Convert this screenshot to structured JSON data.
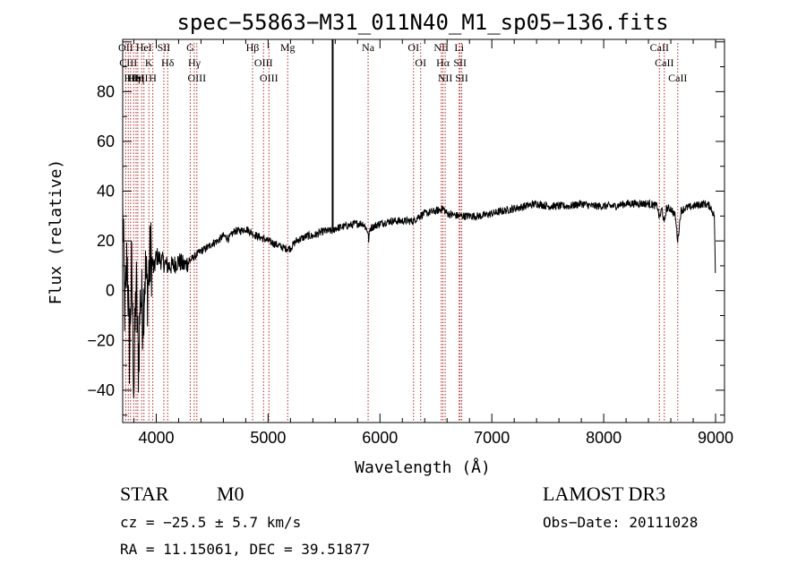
{
  "chart_data": {
    "type": "line",
    "title": "spec−55863−M31_011N40_M1_sp05−136.fits",
    "xlabel": "Wavelength (Å)",
    "ylabel": "Flux (relative)",
    "xlim": [
      3700,
      9080
    ],
    "ylim": [
      -53,
      101
    ],
    "x_ticks": [
      4000,
      5000,
      6000,
      7000,
      8000,
      9000
    ],
    "y_ticks": [
      -40,
      -20,
      0,
      20,
      40,
      60,
      80
    ],
    "y_tick_labels": [
      "−40",
      "−20",
      "0",
      "20",
      "40",
      "60",
      "80"
    ],
    "grid": false,
    "series": [
      {
        "name": "flux",
        "anchors": [
          [
            3700,
            32
          ],
          [
            3720,
            -10
          ],
          [
            3740,
            15
          ],
          [
            3760,
            -25
          ],
          [
            3780,
            10
          ],
          [
            3800,
            -40
          ],
          [
            3820,
            5
          ],
          [
            3840,
            -30
          ],
          [
            3860,
            0
          ],
          [
            3880,
            -10
          ],
          [
            3900,
            8
          ],
          [
            3920,
            0
          ],
          [
            3950,
            15
          ],
          [
            3980,
            8
          ],
          [
            4000,
            14
          ],
          [
            4050,
            12
          ],
          [
            4100,
            10
          ],
          [
            4150,
            10
          ],
          [
            4200,
            12
          ],
          [
            4250,
            10
          ],
          [
            4300,
            12
          ],
          [
            4350,
            14
          ],
          [
            4400,
            16
          ],
          [
            4450,
            17
          ],
          [
            4500,
            19
          ],
          [
            4550,
            20
          ],
          [
            4600,
            22
          ],
          [
            4650,
            21
          ],
          [
            4700,
            24
          ],
          [
            4750,
            24
          ],
          [
            4800,
            25
          ],
          [
            4860,
            23
          ],
          [
            4900,
            22
          ],
          [
            4950,
            21
          ],
          [
            5000,
            20
          ],
          [
            5050,
            19
          ],
          [
            5100,
            18
          ],
          [
            5150,
            17
          ],
          [
            5200,
            17
          ],
          [
            5250,
            20
          ],
          [
            5300,
            21
          ],
          [
            5350,
            22
          ],
          [
            5400,
            22
          ],
          [
            5450,
            23
          ],
          [
            5500,
            24
          ],
          [
            5550,
            24
          ],
          [
            5580,
            24
          ],
          [
            5600,
            25
          ],
          [
            5700,
            26
          ],
          [
            5800,
            27
          ],
          [
            5850,
            27
          ],
          [
            5890,
            24
          ],
          [
            5900,
            20
          ],
          [
            5910,
            25
          ],
          [
            5950,
            26
          ],
          [
            6000,
            27
          ],
          [
            6100,
            28
          ],
          [
            6200,
            28
          ],
          [
            6300,
            28
          ],
          [
            6350,
            30
          ],
          [
            6400,
            31
          ],
          [
            6500,
            32
          ],
          [
            6563,
            33
          ],
          [
            6600,
            31
          ],
          [
            6700,
            30
          ],
          [
            6800,
            30
          ],
          [
            6900,
            30
          ],
          [
            7000,
            31
          ],
          [
            7100,
            32
          ],
          [
            7200,
            33
          ],
          [
            7300,
            34
          ],
          [
            7400,
            35
          ],
          [
            7500,
            34
          ],
          [
            7600,
            34
          ],
          [
            7700,
            34
          ],
          [
            7800,
            35
          ],
          [
            7900,
            34
          ],
          [
            8000,
            34
          ],
          [
            8100,
            34
          ],
          [
            8200,
            35
          ],
          [
            8300,
            35
          ],
          [
            8400,
            35
          ],
          [
            8480,
            34
          ],
          [
            8498,
            29
          ],
          [
            8520,
            33
          ],
          [
            8542,
            27
          ],
          [
            8560,
            33
          ],
          [
            8600,
            33
          ],
          [
            8640,
            30
          ],
          [
            8662,
            20
          ],
          [
            8690,
            32
          ],
          [
            8720,
            33
          ],
          [
            8800,
            34
          ],
          [
            8900,
            35
          ],
          [
            8950,
            34
          ],
          [
            8990,
            30
          ],
          [
            9000,
            0
          ]
        ]
      }
    ],
    "lines": [
      {
        "wl": 3727,
        "label": "OII"
      },
      {
        "wl": 3750,
        "label": "CIII"
      },
      {
        "wl": 3770,
        "label": "Hθ"
      },
      {
        "wl": 3798,
        "label": "Hη"
      },
      {
        "wl": 3820,
        "label": "HeI"
      },
      {
        "wl": 3835,
        "label": "Hη"
      },
      {
        "wl": 3870,
        "label": "SII"
      },
      {
        "wl": 3890,
        "label": "HeI"
      },
      {
        "wl": 3934,
        "label": "K"
      },
      {
        "wl": 3969,
        "label": "H"
      },
      {
        "wl": 4068,
        "label": "SII"
      },
      {
        "wl": 4102,
        "label": "Hδ"
      },
      {
        "wl": 4304,
        "label": "G"
      },
      {
        "wl": 4340,
        "label": "Hγ"
      },
      {
        "wl": 4363,
        "label": "OIII"
      },
      {
        "wl": 4861,
        "label": "Hβ"
      },
      {
        "wl": 4959,
        "label": "OIII"
      },
      {
        "wl": 5007,
        "label": "OIII"
      },
      {
        "wl": 5175,
        "label": "Mg"
      },
      {
        "wl": 5894,
        "label": "Na"
      },
      {
        "wl": 6300,
        "label": "OI"
      },
      {
        "wl": 6364,
        "label": "OI"
      },
      {
        "wl": 6548,
        "label": "NII"
      },
      {
        "wl": 6563,
        "label": "Hα"
      },
      {
        "wl": 6583,
        "label": "NII"
      },
      {
        "wl": 6708,
        "label": "Li"
      },
      {
        "wl": 6716,
        "label": "SII"
      },
      {
        "wl": 6731,
        "label": "SII"
      },
      {
        "wl": 8498,
        "label": "CaII"
      },
      {
        "wl": 8542,
        "label": "CaII"
      },
      {
        "wl": 8662,
        "label": "CaII"
      }
    ],
    "spike": {
      "wl": 5577,
      "from": 24,
      "to": 101
    }
  },
  "info": {
    "class": "STAR",
    "subclass": "M0",
    "survey": "LAMOST DR3",
    "cz": "cz = −25.5 ± 5.7 km/s",
    "obsdate": "Obs−Date: 20111028",
    "radec": "RA =  11.15061, DEC =  39.51877"
  },
  "colors": {
    "axis": "#000000",
    "spectrum": "#000000",
    "lines": "#b22222"
  }
}
